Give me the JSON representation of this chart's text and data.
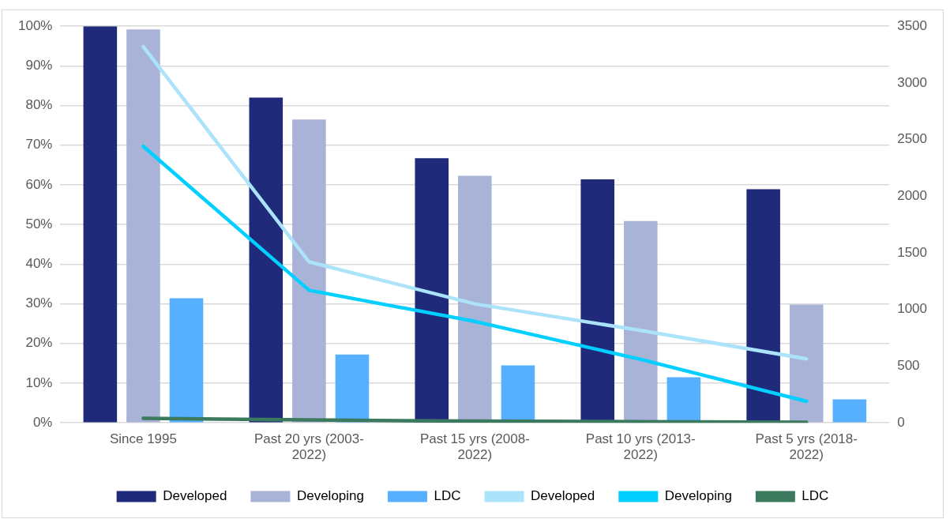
{
  "chart_data": {
    "type": "bar",
    "categories": [
      "Since 1995",
      [
        "Past 20 yrs (2003-",
        "2022)"
      ],
      [
        "Past 15 yrs (2008-",
        "2022)"
      ],
      [
        "Past 10 yrs (2013-",
        "2022)"
      ],
      [
        "Past 5 yrs (2018-",
        "2022)"
      ]
    ],
    "series": [
      {
        "name": "Developed",
        "color": "#1f2a7a",
        "values": [
          100,
          82,
          66.7,
          61.4,
          58.9
        ]
      },
      {
        "name": "Developing",
        "color": "#a9b3d8",
        "values": [
          99.2,
          76.5,
          62.3,
          50.9,
          29.8
        ]
      },
      {
        "name": "LDC",
        "color": "#57b0ff",
        "values": [
          31.4,
          17.2,
          14.5,
          11.5,
          5.9
        ]
      },
      {
        "name": "Developed",
        "type": "line",
        "axis": "y2",
        "color": "#abe3fb",
        "values": [
          3320,
          1420,
          1050,
          815,
          565
        ]
      },
      {
        "name": "Developing",
        "type": "line",
        "axis": "y2",
        "color": "#00cfff",
        "values": [
          2440,
          1170,
          895,
          560,
          190
        ]
      },
      {
        "name": "LDC",
        "type": "line",
        "axis": "y2",
        "color": "#3b7a5e",
        "values": [
          40,
          25,
          15,
          10,
          5
        ]
      }
    ],
    "ylim": [
      0,
      100
    ],
    "yticks": [
      {
        "value": 0,
        "label": "0%"
      },
      {
        "value": 10,
        "label": "10%"
      },
      {
        "value": 20,
        "label": "20%"
      },
      {
        "value": 30,
        "label": "30%"
      },
      {
        "value": 40,
        "label": "40%"
      },
      {
        "value": 50,
        "label": "50%"
      },
      {
        "value": 60,
        "label": "60%"
      },
      {
        "value": 70,
        "label": "70%"
      },
      {
        "value": 80,
        "label": "80%"
      },
      {
        "value": 90,
        "label": "90%"
      },
      {
        "value": 100,
        "label": "100%"
      }
    ],
    "y2lim": [
      0,
      3500
    ],
    "y2ticks": [
      0,
      500,
      1000,
      1500,
      2000,
      2500,
      3000,
      3500
    ],
    "grid": "y",
    "legend": "bottom",
    "marker": "none",
    "line_style": "solid"
  }
}
